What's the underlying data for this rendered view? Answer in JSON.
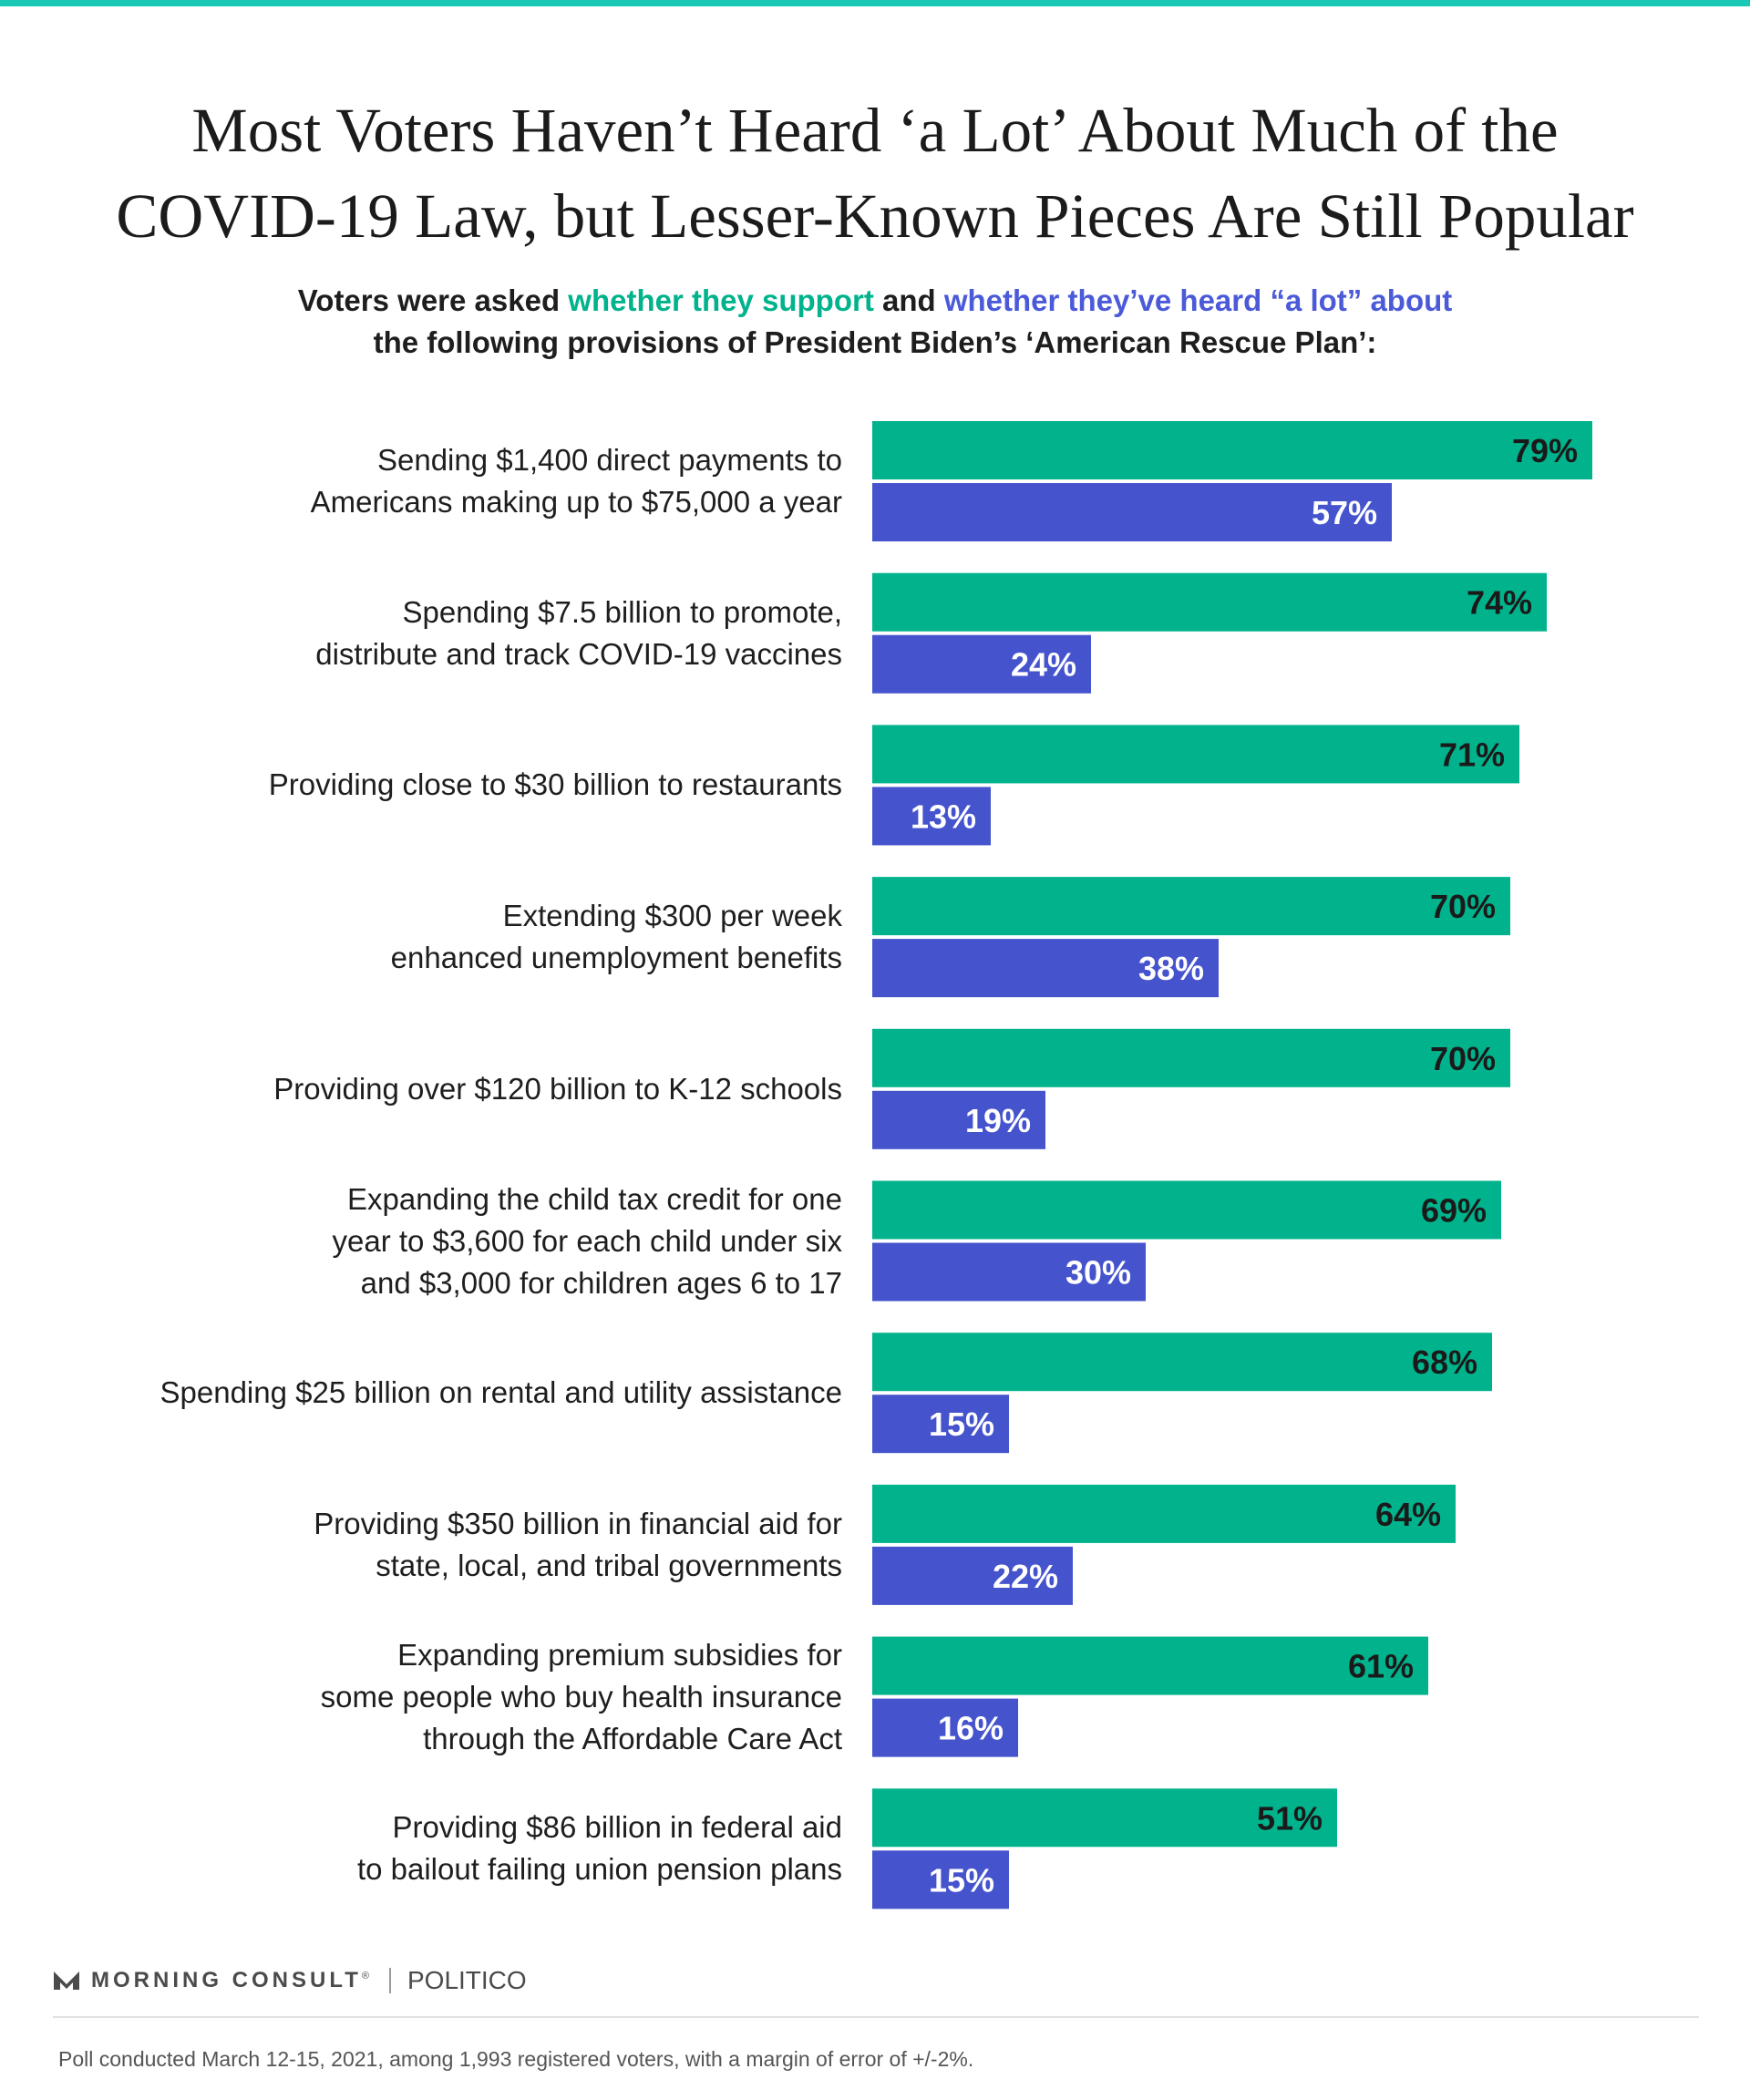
{
  "title_line1": "Most Voters Haven’t Heard ‘a Lot’ About Much of the",
  "title_line2": "COVID-19 Law, but Lesser-Known Pieces Are Still Popular",
  "subtitle": {
    "p1": "Voters were asked ",
    "support": "whether they support",
    "p2": " and ",
    "heard": "whether they’ve heard “a lot” about",
    "line2": "the following provisions of President Biden’s ‘American Rescue Plan’:"
  },
  "chart_data": {
    "type": "bar",
    "orientation": "horizontal",
    "categories": [
      [
        "Sending $1,400 direct payments to",
        "Americans making up to $75,000 a year"
      ],
      [
        "Spending $7.5 billion to promote,",
        "distribute and track COVID-19 vaccines"
      ],
      [
        "Providing close to $30 billion to restaurants"
      ],
      [
        "Extending $300 per week",
        "enhanced unemployment benefits"
      ],
      [
        "Providing over $120 billion to K-12 schools"
      ],
      [
        "Expanding the child tax credit for one",
        "year to $3,600 for each child under six",
        "and $3,000 for children ages 6 to 17"
      ],
      [
        "Spending $25 billion on rental and utility assistance"
      ],
      [
        "Providing $350 billion in financial aid for",
        "state, local, and tribal governments"
      ],
      [
        "Expanding premium subsidies for",
        "some people who buy health insurance",
        "through the Affordable Care Act"
      ],
      [
        "Providing $86 billion in federal aid",
        "to bailout failing union pension plans"
      ]
    ],
    "series": [
      {
        "values": [
          79,
          74,
          71,
          70,
          70,
          69,
          68,
          64,
          61,
          51
        ],
        "labels": [
          "79%",
          "74%",
          "71%",
          "70%",
          "70%",
          "69%",
          "68%",
          "64%",
          "61%",
          "51%"
        ],
        "color": "#00b38c",
        "label_color": "#1a1a1a"
      },
      {
        "values": [
          57,
          24,
          13,
          38,
          19,
          30,
          15,
          22,
          16,
          15
        ],
        "labels": [
          "57%",
          "24%",
          "13%",
          "38%",
          "19%",
          "30%",
          "15%",
          "22%",
          "16%",
          "15%"
        ],
        "color": "#4553cd",
        "label_color": "#ffffff"
      }
    ],
    "xlim": [
      0,
      100
    ],
    "grid": false,
    "legend": "none"
  },
  "footer": {
    "logo_text": "MORNING CONSULT",
    "trademark": "®",
    "partner": "POLITICO",
    "note": "Poll conducted March 12-15, 2021, among 1,993 registered voters, with a margin of error of +/-2%."
  }
}
